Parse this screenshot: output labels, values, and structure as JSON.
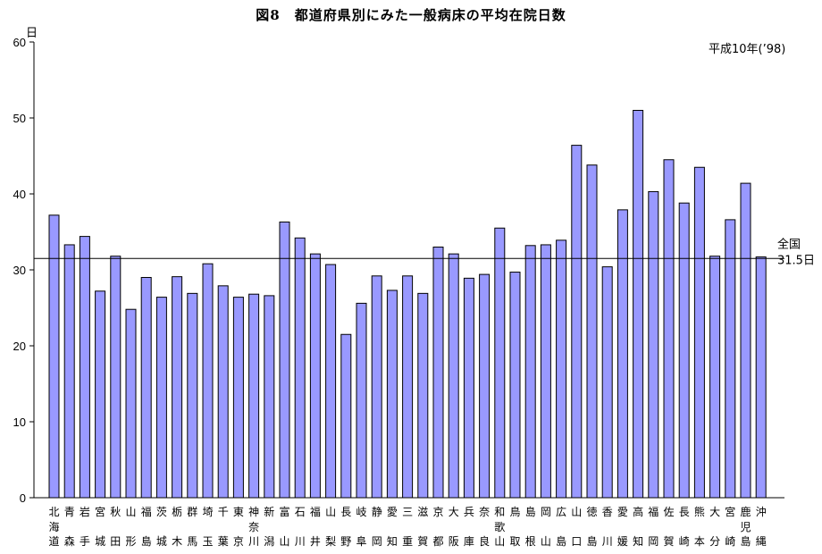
{
  "chart_data": {
    "type": "bar",
    "title": "図8　都道府県別にみた一般病床の平均在院日数",
    "subtitle": "平成10年(’98)",
    "ylabel": "日",
    "ylim": [
      0,
      60
    ],
    "yticks": [
      0,
      10,
      20,
      30,
      40,
      50,
      60
    ],
    "grid": false,
    "bar_color": "#9999ff",
    "bar_edge_color": "#000000",
    "reference_line": {
      "value": 31.5,
      "label_line1": "全国",
      "label_line2": "31.5日"
    },
    "categories": [
      "北海道",
      "青森",
      "岩手",
      "宮城",
      "秋田",
      "山形",
      "福島",
      "茨城",
      "栃木",
      "群馬",
      "埼玉",
      "千葉",
      "東京",
      "神奈川",
      "新潟",
      "富山",
      "石川",
      "福井",
      "山梨",
      "長野",
      "岐阜",
      "静岡",
      "愛知",
      "三重",
      "滋賀",
      "京都",
      "大阪",
      "兵庫",
      "奈良",
      "和歌山",
      "鳥取",
      "島根",
      "岡山",
      "広島",
      "山口",
      "徳島",
      "香川",
      "愛媛",
      "高知",
      "福岡",
      "佐賀",
      "長崎",
      "熊本",
      "大分",
      "宮崎",
      "鹿児島",
      "沖縄"
    ],
    "values": [
      37.2,
      33.3,
      34.4,
      27.2,
      31.8,
      24.8,
      29.0,
      26.4,
      29.1,
      26.9,
      30.8,
      27.9,
      26.4,
      26.8,
      26.6,
      36.3,
      34.2,
      32.1,
      30.7,
      21.5,
      25.6,
      29.2,
      27.3,
      29.2,
      26.9,
      33.0,
      32.1,
      28.9,
      29.4,
      35.5,
      29.7,
      33.2,
      33.3,
      33.9,
      46.4,
      43.8,
      30.4,
      37.9,
      51.0,
      40.3,
      44.5,
      38.8,
      43.5,
      31.8,
      36.6,
      41.4,
      31.7
    ]
  }
}
